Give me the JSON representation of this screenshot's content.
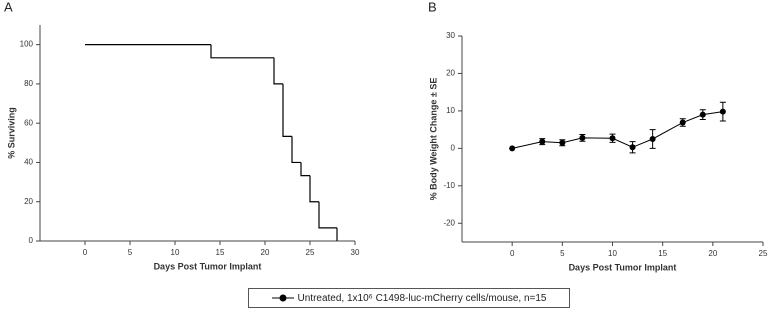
{
  "chart_data": [
    {
      "type": "step",
      "title": "A",
      "x_label": "Days Post Tumor Implant",
      "y_label": "% Surviving",
      "x": [
        0,
        14,
        21,
        22,
        23,
        24,
        25,
        26,
        28
      ],
      "series": [
        {
          "color": "#000000",
          "values": [
            100,
            93.3,
            80,
            53.3,
            40,
            33.3,
            20,
            6.7,
            0
          ]
        }
      ],
      "xlim": [
        -5,
        30
      ],
      "xticks": [
        0,
        5,
        10,
        15,
        20,
        25,
        30
      ],
      "ylim": [
        0,
        110
      ],
      "yticks": [
        0,
        20,
        40,
        60,
        80,
        100
      ]
    },
    {
      "type": "line",
      "title": "B",
      "x_label": "Days Post Tumor Implant",
      "y_label": "% Body Weight Change ± SE",
      "x": [
        0,
        3,
        5,
        7,
        10,
        12,
        14,
        17,
        19,
        21
      ],
      "series": [
        {
          "name": "Untreated, 1x10⁶ C1498-luc-mCherry cells/mouse, n=15",
          "color": "#000000",
          "values": [
            0,
            1.8,
            1.5,
            2.8,
            2.7,
            0.3,
            2.5,
            6.9,
            9,
            9.8
          ],
          "errors": [
            0,
            0.8,
            0.8,
            0.9,
            1.1,
            1.5,
            2.5,
            1,
            1.3,
            2.5
          ]
        }
      ],
      "xlim": [
        -5,
        25
      ],
      "xticks": [
        0,
        5,
        10,
        15,
        20,
        25
      ],
      "ylim": [
        -25,
        30
      ],
      "yticks": [
        -20,
        -10,
        0,
        10,
        20,
        30
      ]
    }
  ]
}
